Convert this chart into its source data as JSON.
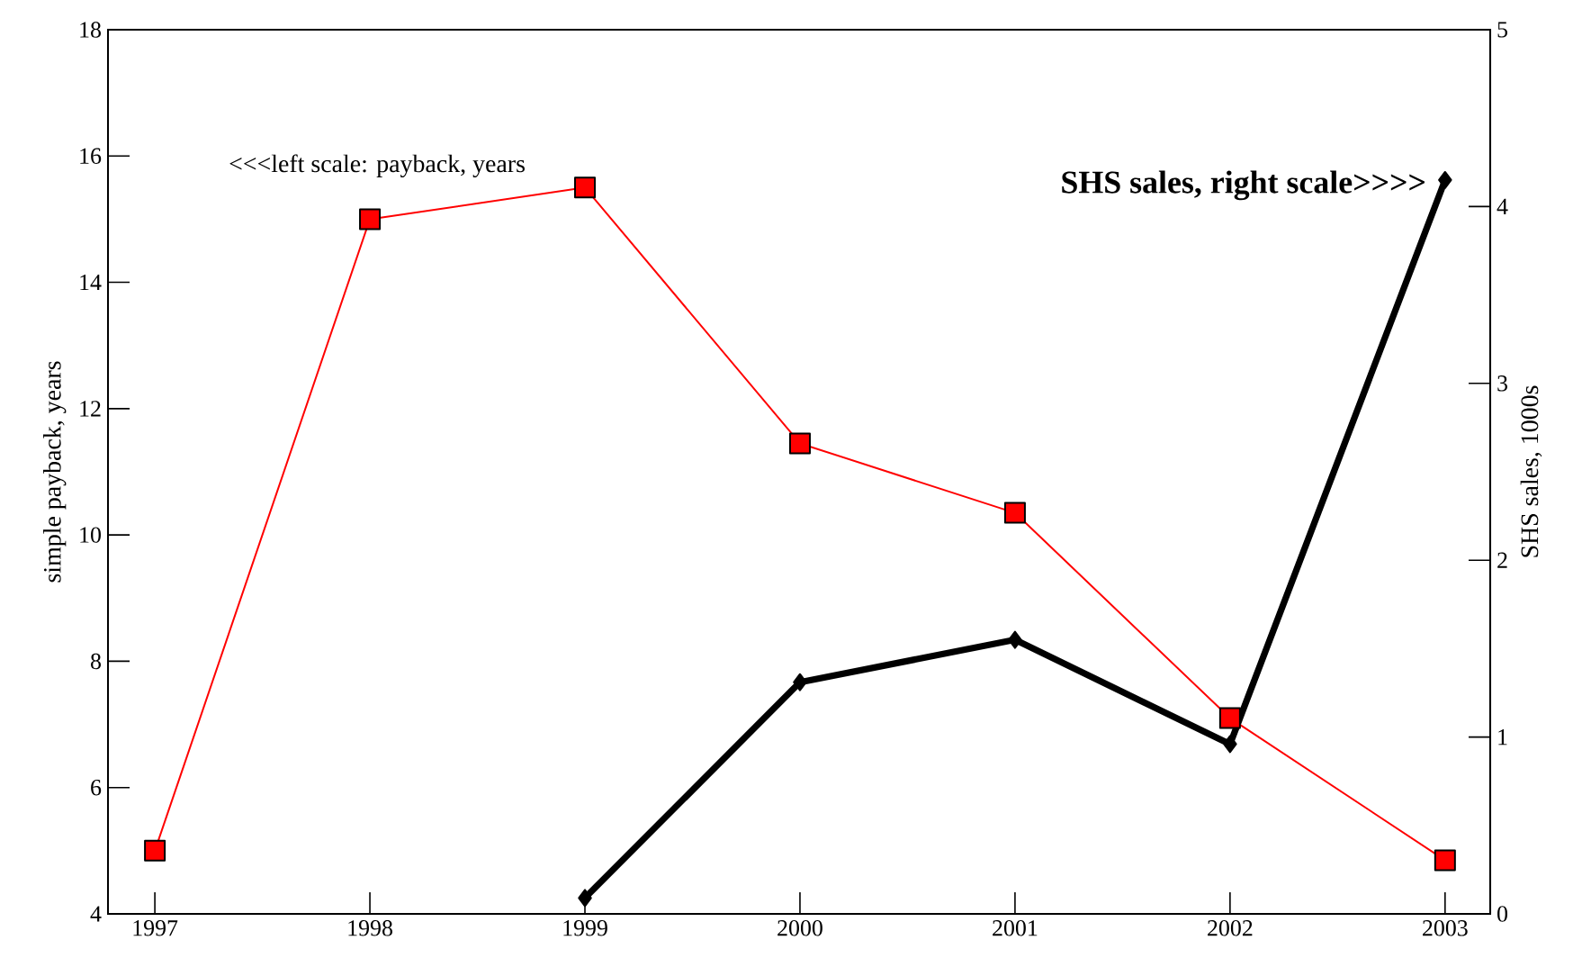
{
  "chart_data": {
    "type": "line",
    "categories": [
      "1997",
      "1998",
      "1999",
      "2000",
      "2001",
      "2002",
      "2003"
    ],
    "series": [
      {
        "color": "#ff0000",
        "marker": "square",
        "values": [
          5.0,
          15.0,
          15.5,
          11.45,
          10.35,
          7.1,
          4.85
        ]
      },
      {
        "color": "#000000",
        "marker": "diamond",
        "axis": "y2",
        "values": [
          null,
          null,
          0.09,
          1.31,
          1.55,
          0.96,
          4.15
        ]
      }
    ],
    "ylabel": "simple payback, years",
    "y2label": "SHS sales, 1000s",
    "ylim": [
      4,
      18
    ],
    "yticks": [
      4,
      6,
      8,
      10,
      12,
      14,
      16,
      18
    ],
    "y2lim": [
      0,
      5
    ],
    "y2ticks": [
      0,
      1,
      2,
      3,
      4,
      5
    ],
    "annotations": [
      "<<<left scale: payback, years",
      "SHS sales, right scale>>>>"
    ]
  }
}
